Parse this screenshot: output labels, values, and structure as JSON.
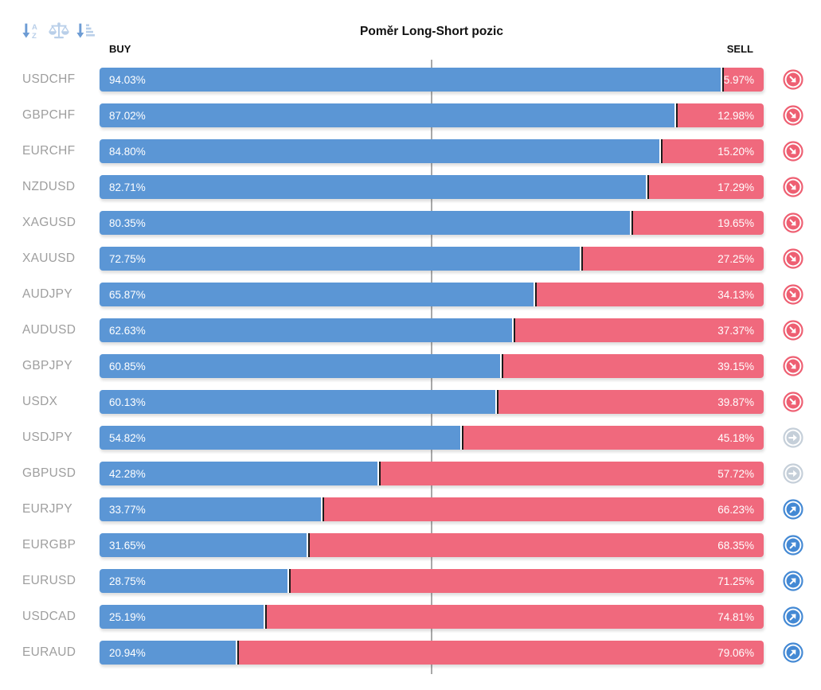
{
  "title": "Poměr Long-Short pozic",
  "columns": {
    "buy_label": "BUY",
    "sell_label": "SELL"
  },
  "toolbar": {
    "sort_alpha_icon": "sort-alphabetical-descending",
    "balance_scale_icon": "balance-scale",
    "sort_amount_icon": "sort-by-amount"
  },
  "colors": {
    "buy_bar": "#5b96d5",
    "sell_bar": "#f0697d",
    "bar_divider": "#1b1b1b",
    "center_line": "#a8a8a8",
    "pair_label": "#9e9e9e",
    "signal_down": "#ee5f72",
    "signal_neutral": "#c5cfd9",
    "signal_up": "#4489d4",
    "toolbar_primary": "#6d9cd4",
    "toolbar_light": "#b9cfe9"
  },
  "chart_data": {
    "type": "bar",
    "orientation": "horizontal",
    "stacked": true,
    "title": "Poměr Long-Short pozic",
    "categories": [
      "USDCHF",
      "GBPCHF",
      "EURCHF",
      "NZDUSD",
      "XAGUSD",
      "XAUUSD",
      "AUDJPY",
      "AUDUSD",
      "GBPJPY",
      "USDX",
      "USDJPY",
      "GBPUSD",
      "EURJPY",
      "EURGBP",
      "EURUSD",
      "USDCAD",
      "EURAUD"
    ],
    "series": [
      {
        "name": "BUY",
        "color": "#5b96d5",
        "values": [
          94.03,
          87.02,
          84.8,
          82.71,
          80.35,
          72.75,
          65.87,
          62.63,
          60.85,
          60.13,
          54.82,
          42.28,
          33.77,
          31.65,
          28.75,
          25.19,
          20.94
        ]
      },
      {
        "name": "SELL",
        "color": "#f0697d",
        "values": [
          5.97,
          12.98,
          15.2,
          17.29,
          19.65,
          27.25,
          34.13,
          37.37,
          39.15,
          39.87,
          45.18,
          57.72,
          66.23,
          68.35,
          71.25,
          74.81,
          79.06
        ]
      }
    ],
    "xlim": [
      0,
      100
    ],
    "center_line_pct": 50,
    "grid": false,
    "legend_position": "top",
    "signals": [
      "down",
      "down",
      "down",
      "down",
      "down",
      "down",
      "down",
      "down",
      "down",
      "down",
      "neutral",
      "neutral",
      "up",
      "up",
      "up",
      "up",
      "up"
    ]
  },
  "rows": [
    {
      "pair": "USDCHF",
      "buy_pct": 94.03,
      "sell_pct": 5.97,
      "buy_label": "94.03%",
      "sell_label": "5.97%",
      "signal": "down"
    },
    {
      "pair": "GBPCHF",
      "buy_pct": 87.02,
      "sell_pct": 12.98,
      "buy_label": "87.02%",
      "sell_label": "12.98%",
      "signal": "down"
    },
    {
      "pair": "EURCHF",
      "buy_pct": 84.8,
      "sell_pct": 15.2,
      "buy_label": "84.80%",
      "sell_label": "15.20%",
      "signal": "down"
    },
    {
      "pair": "NZDUSD",
      "buy_pct": 82.71,
      "sell_pct": 17.29,
      "buy_label": "82.71%",
      "sell_label": "17.29%",
      "signal": "down"
    },
    {
      "pair": "XAGUSD",
      "buy_pct": 80.35,
      "sell_pct": 19.65,
      "buy_label": "80.35%",
      "sell_label": "19.65%",
      "signal": "down"
    },
    {
      "pair": "XAUUSD",
      "buy_pct": 72.75,
      "sell_pct": 27.25,
      "buy_label": "72.75%",
      "sell_label": "27.25%",
      "signal": "down"
    },
    {
      "pair": "AUDJPY",
      "buy_pct": 65.87,
      "sell_pct": 34.13,
      "buy_label": "65.87%",
      "sell_label": "34.13%",
      "signal": "down"
    },
    {
      "pair": "AUDUSD",
      "buy_pct": 62.63,
      "sell_pct": 37.37,
      "buy_label": "62.63%",
      "sell_label": "37.37%",
      "signal": "down"
    },
    {
      "pair": "GBPJPY",
      "buy_pct": 60.85,
      "sell_pct": 39.15,
      "buy_label": "60.85%",
      "sell_label": "39.15%",
      "signal": "down"
    },
    {
      "pair": "USDX",
      "buy_pct": 60.13,
      "sell_pct": 39.87,
      "buy_label": "60.13%",
      "sell_label": "39.87%",
      "signal": "down"
    },
    {
      "pair": "USDJPY",
      "buy_pct": 54.82,
      "sell_pct": 45.18,
      "buy_label": "54.82%",
      "sell_label": "45.18%",
      "signal": "neutral"
    },
    {
      "pair": "GBPUSD",
      "buy_pct": 42.28,
      "sell_pct": 57.72,
      "buy_label": "42.28%",
      "sell_label": "57.72%",
      "signal": "neutral"
    },
    {
      "pair": "EURJPY",
      "buy_pct": 33.77,
      "sell_pct": 66.23,
      "buy_label": "33.77%",
      "sell_label": "66.23%",
      "signal": "up"
    },
    {
      "pair": "EURGBP",
      "buy_pct": 31.65,
      "sell_pct": 68.35,
      "buy_label": "31.65%",
      "sell_label": "68.35%",
      "signal": "up"
    },
    {
      "pair": "EURUSD",
      "buy_pct": 28.75,
      "sell_pct": 71.25,
      "buy_label": "28.75%",
      "sell_label": "71.25%",
      "signal": "up"
    },
    {
      "pair": "USDCAD",
      "buy_pct": 25.19,
      "sell_pct": 74.81,
      "buy_label": "25.19%",
      "sell_label": "74.81%",
      "signal": "up"
    },
    {
      "pair": "EURAUD",
      "buy_pct": 20.94,
      "sell_pct": 79.06,
      "buy_label": "20.94%",
      "sell_label": "79.06%",
      "signal": "up"
    }
  ]
}
